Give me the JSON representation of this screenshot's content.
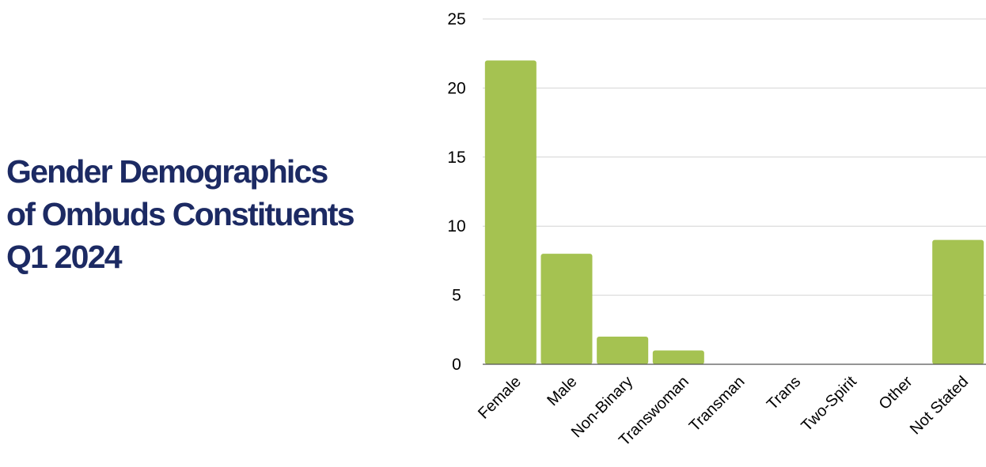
{
  "title_lines": [
    "Gender Demographics",
    "of Ombuds Constituents",
    "Q1 2024"
  ],
  "colors": {
    "title": "#1c2a63",
    "bar": "#a5c251",
    "grid": "#d4d4d4",
    "axis": "#555555"
  },
  "chart_data": {
    "type": "bar",
    "title": "Gender Demographics of Ombuds Constituents Q1 2024",
    "xlabel": "",
    "ylabel": "",
    "categories": [
      "Female",
      "Male",
      "Non-Binary",
      "Transwoman",
      "Transman",
      "Trans",
      "Two-Spirit",
      "Other",
      "Not Stated"
    ],
    "values": [
      22,
      8,
      2,
      1,
      0,
      0,
      0,
      0,
      9
    ],
    "ylim": [
      0,
      25
    ],
    "yticks": [
      0,
      5,
      10,
      15,
      20,
      25
    ],
    "grid": true,
    "legend": "none"
  }
}
